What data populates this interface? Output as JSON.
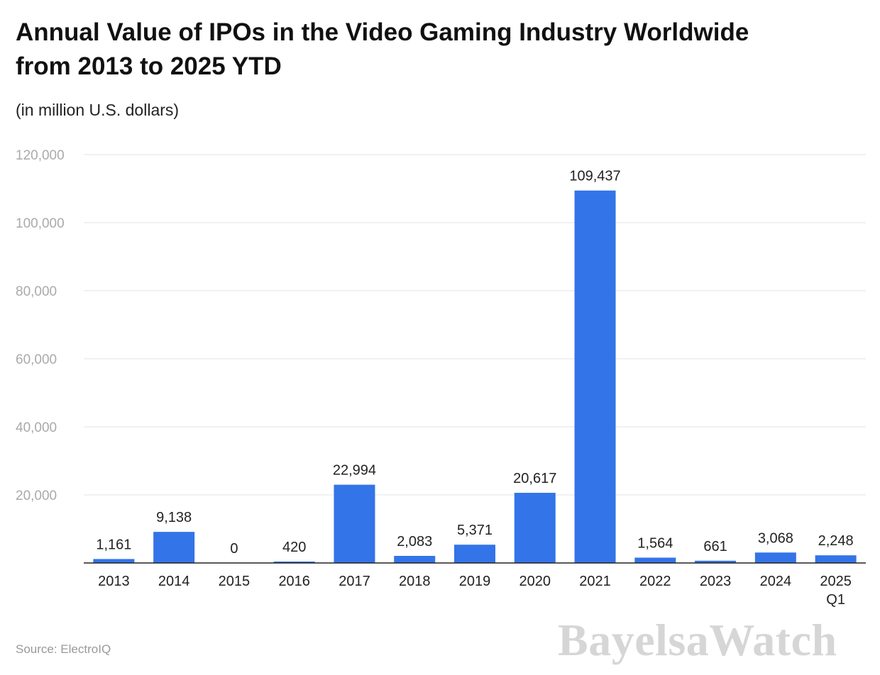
{
  "chart_data": {
    "type": "bar",
    "title": "Annual Value of IPOs in the Video Gaming Industry Worldwide from 2013 to 2025 YTD",
    "subtitle": "(in million U.S. dollars)",
    "xlabel": "",
    "ylabel": "",
    "categories": [
      "2013",
      "2014",
      "2015",
      "2016",
      "2017",
      "2018",
      "2019",
      "2020",
      "2021",
      "2022",
      "2023",
      "2024",
      "2025 Q1"
    ],
    "values": [
      1161,
      9138,
      0,
      420,
      22994,
      2083,
      5371,
      20617,
      109437,
      1564,
      661,
      3068,
      2248
    ],
    "data_labels": [
      "1,161",
      "9,138",
      "0",
      "420",
      "22,994",
      "2,083",
      "5,371",
      "20,617",
      "109,437",
      "1,564",
      "661",
      "3,068",
      "2,248"
    ],
    "ylim": [
      0,
      120000
    ],
    "yticks": [
      0,
      20000,
      40000,
      60000,
      80000,
      100000,
      120000
    ],
    "ytick_labels": [
      "",
      "20,000",
      "40,000",
      "60,000",
      "80,000",
      "100,000",
      "120,000"
    ],
    "grid": true,
    "legend": "none",
    "bar_color": "#3374e8"
  },
  "source": "Source: ElectroIQ",
  "watermark": "BayelsaWatch"
}
